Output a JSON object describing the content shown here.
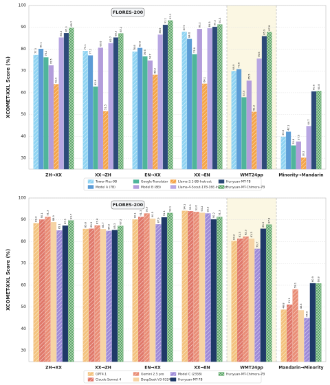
{
  "chart_data": [
    {
      "type": "bar",
      "y_label": "XCOMET-XXL Score (%)",
      "annotation": "FLORES-200",
      "categories": [
        "ZH→XX",
        "XX→ZH",
        "EN→XX",
        "XX→EN",
        "WMT24pp",
        "Minority→Mandarin"
      ],
      "ylim": [
        25,
        100
      ],
      "yticks": [
        30,
        40,
        50,
        60,
        70,
        80,
        90,
        100
      ],
      "grid": true,
      "series": [
        {
          "name": "Tower-Plus-9B",
          "color": "#8fd3f2",
          "hatch": "diagonal",
          "values": [
            77.3,
            79.1,
            78.8,
            87.9,
            69.9,
            39.8
          ]
        },
        {
          "name": "Model A (7B)",
          "color": "#5b9bd5",
          "hatch": "none",
          "values": [
            80.1,
            77.1,
            80.5,
            84.6,
            70.8,
            42.1
          ]
        },
        {
          "name": "Google-Translator",
          "color": "#4fb59b",
          "hatch": "none",
          "values": [
            76.2,
            62.8,
            76.6,
            77.6,
            57.9,
            35.8
          ]
        },
        {
          "name": "Model B (8B)",
          "color": "#b39ddb",
          "hatch": "none",
          "values": [
            72.5,
            80.6,
            74.7,
            89.2,
            65.5,
            37.6
          ]
        },
        {
          "name": "Llama-3.1-8B-Instruct",
          "color": "#f5a54a",
          "hatch": "diagonal",
          "values": [
            63.9,
            51.5,
            68.2,
            64.1,
            51.2,
            30.2
          ]
        },
        {
          "name": "Llama-4-Scout-17B-16E-Instruct",
          "color": "#b8a7e3",
          "hatch": "none",
          "values": [
            85.3,
            82.7,
            86.6,
            89.5,
            75.6,
            44.7
          ]
        },
        {
          "name": "Hunyuan-MT-7B",
          "color": "#2c4a78",
          "hatch": "none",
          "values": [
            87.3,
            85.3,
            91.1,
            90.2,
            85.9,
            60.6
          ]
        },
        {
          "name": "Hunyuan-MT-Chimera-7B",
          "color": "#5fa86a",
          "hatch": "check",
          "values": [
            89.7,
            87.2,
            93.1,
            91.3,
            87.8,
            60.8
          ]
        }
      ]
    },
    {
      "type": "bar",
      "y_label": "XCOMET-XXL Score (%)",
      "annotation": "FLORES-200",
      "categories": [
        "ZH→XX",
        "XX→ZH",
        "EN→XX",
        "XX→EN",
        "WMT24pp",
        "Mandarin→Minority"
      ],
      "ylim": [
        25,
        100
      ],
      "yticks": [
        30,
        40,
        50,
        60,
        70,
        80,
        90,
        100
      ],
      "grid": true,
      "series": [
        {
          "name": "GPT4.1",
          "color": "#f3c27e",
          "hatch": "diagonal",
          "values": [
            88.4,
            85.8,
            90.1,
            94.1,
            80.2,
            48.8
          ]
        },
        {
          "name": "Claude Sonnet 4",
          "color": "#e0786a",
          "hatch": "diagonal",
          "values": [
            90.1,
            85.9,
            91.3,
            93.9,
            81.3,
            51.1
          ]
        },
        {
          "name": "Gemini 2.5 pro",
          "color": "#e98d76",
          "hatch": "diagonal",
          "values": [
            91.3,
            87.4,
            92.9,
            93.6,
            82.3,
            58.1
          ]
        },
        {
          "name": "DeepSeek-V3-0324",
          "color": "#f6d3a4",
          "hatch": "none",
          "values": [
            88.9,
            85.7,
            90.5,
            93.2,
            81.3,
            48.5
          ]
        },
        {
          "name": "Model C (235B)",
          "color": "#9d8ad8",
          "hatch": "diagonal",
          "values": [
            85.1,
            84.9,
            87.9,
            92.9,
            76.7,
            44.9
          ]
        },
        {
          "name": "Hunyuan-MT-7B",
          "color": "#1f3a68",
          "hatch": "none",
          "values": [
            87.3,
            85.3,
            91.1,
            90.2,
            85.9,
            60.9
          ]
        },
        {
          "name": "Hunyuan-MT-Chimera-7B",
          "color": "#5fa86a",
          "hatch": "check",
          "values": [
            89.7,
            87.2,
            93.1,
            91.3,
            87.8,
            60.8
          ]
        }
      ]
    }
  ]
}
